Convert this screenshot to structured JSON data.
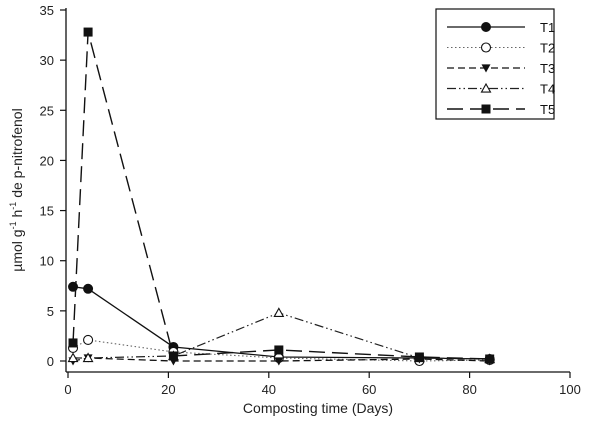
{
  "chart_data": {
    "type": "line",
    "title": "",
    "xlabel": "Composting time (Days)",
    "ylabel_parts": [
      "µmol g",
      "-1",
      " h",
      "-1",
      " de p-nitrofenol"
    ],
    "ylabel": "µmol g-1 h-1 de p-nitrofenol",
    "xlim": [
      0,
      100
    ],
    "ylim": [
      0,
      35
    ],
    "xticks": [
      0,
      20,
      40,
      60,
      80,
      100
    ],
    "yticks": [
      0,
      5,
      10,
      15,
      20,
      25,
      30,
      35
    ],
    "grid": false,
    "legend_position": "top-right",
    "series": [
      {
        "name": "T1",
        "marker": "circle-filled",
        "dash": "solid",
        "x": [
          1,
          4,
          21,
          42,
          70,
          84
        ],
        "y": [
          7.4,
          7.2,
          1.4,
          0.4,
          0.3,
          0.2
        ]
      },
      {
        "name": "T2",
        "marker": "circle-open",
        "dash": "dotted",
        "x": [
          1,
          4,
          21,
          42,
          70,
          84
        ],
        "y": [
          1.3,
          2.1,
          0.9,
          0.3,
          0.0,
          0.1
        ]
      },
      {
        "name": "T3",
        "marker": "triangle-down-filled",
        "dash": "short-dash",
        "x": [
          1,
          4,
          21,
          42,
          70,
          84
        ],
        "y": [
          0.0,
          0.3,
          0.0,
          0.0,
          0.2,
          0.0
        ]
      },
      {
        "name": "T4",
        "marker": "triangle-up-open",
        "dash": "dash-dot-dot",
        "x": [
          1,
          4,
          21,
          42,
          70,
          84
        ],
        "y": [
          0.3,
          0.3,
          0.5,
          4.8,
          0.3,
          0.2
        ]
      },
      {
        "name": "T5",
        "marker": "square-filled",
        "dash": "long-dash",
        "x": [
          1,
          4,
          21,
          42,
          70,
          84
        ],
        "y": [
          1.8,
          32.8,
          0.5,
          1.1,
          0.4,
          0.2
        ]
      }
    ]
  }
}
